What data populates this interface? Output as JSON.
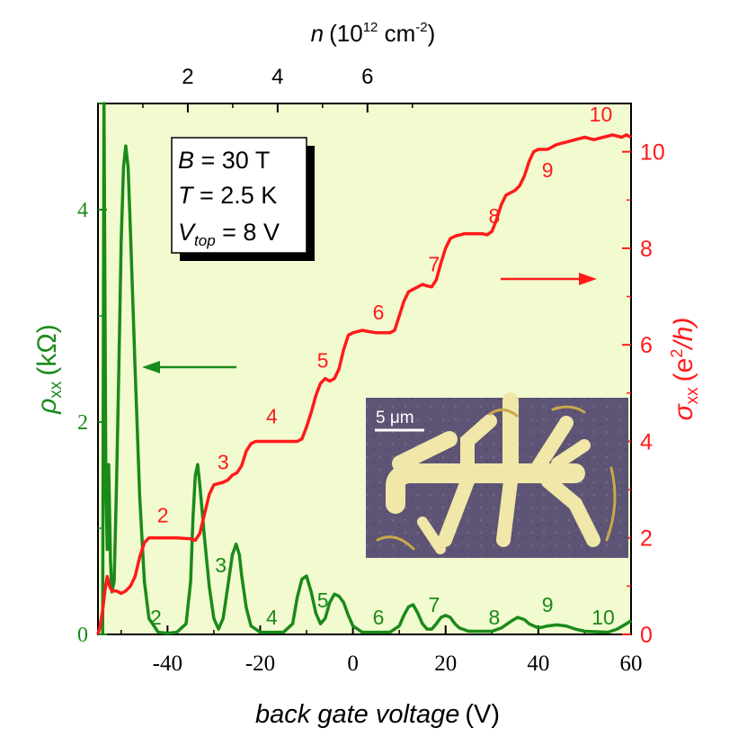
{
  "chart_data": {
    "type": "line",
    "xlabel_italic": "back gate voltage",
    "xlabel_unit": "(V)",
    "x_ticks": [
      -40,
      -20,
      0,
      20,
      40,
      60
    ],
    "xlim": [
      -55,
      60
    ],
    "top_axis": {
      "label_var": "n",
      "label_pre": "(10",
      "label_exp1": "12",
      "label_mid": " cm",
      "label_exp2": "-2",
      "label_post": ")",
      "ticks": [
        2,
        4,
        6
      ]
    },
    "left_axis": {
      "label_sym": "ρ",
      "label_sub": "xx",
      "label_unit": "(kΩ)",
      "ticks": [
        0,
        2,
        4
      ],
      "ylim": [
        0,
        5
      ],
      "color": "#1a8a1a"
    },
    "right_axis": {
      "label_sym": "σ",
      "label_sub": "xx",
      "label_unit_pre": "(e",
      "label_unit_exp": "2",
      "label_unit_post": "/h)",
      "ticks": [
        0,
        2,
        4,
        6,
        8,
        10
      ],
      "ylim": [
        0,
        11
      ],
      "color": "#ff1a1a"
    },
    "legend_box": {
      "line1_var": "B",
      "line1_val": " = 30 T",
      "line2_var": "T",
      "line2_val": " = 2.5 K",
      "line3_var": "V",
      "line3_sub": "top",
      "line3_val": " = 8 V"
    },
    "inset": {
      "scale_label": "5 μm"
    },
    "series": [
      {
        "axis": "left",
        "color": "#1a8a1a",
        "points": [
          [
            -54,
            0
          ],
          [
            -53.7,
            5.0
          ],
          [
            -53.3,
            1.4
          ],
          [
            -53,
            0.8
          ],
          [
            -52.7,
            1.6
          ],
          [
            -52.3,
            0.7
          ],
          [
            -52,
            0.4
          ],
          [
            -51.5,
            0.5
          ],
          [
            -51,
            1.4
          ],
          [
            -50.5,
            2.5
          ],
          [
            -50,
            3.7
          ],
          [
            -49.5,
            4.4
          ],
          [
            -49,
            4.6
          ],
          [
            -48.5,
            4.4
          ],
          [
            -48,
            3.8
          ],
          [
            -47,
            2.5
          ],
          [
            -46,
            1.3
          ],
          [
            -45,
            0.5
          ],
          [
            -44,
            0.15
          ],
          [
            -42,
            0.02
          ],
          [
            -40,
            0.01
          ],
          [
            -38,
            0.02
          ],
          [
            -36,
            0.1
          ],
          [
            -35,
            0.5
          ],
          [
            -34.5,
            1.1
          ],
          [
            -34,
            1.5
          ],
          [
            -33.5,
            1.6
          ],
          [
            -33,
            1.4
          ],
          [
            -32,
            0.9
          ],
          [
            -31,
            0.45
          ],
          [
            -30,
            0.15
          ],
          [
            -29,
            0.05
          ],
          [
            -28,
            0.15
          ],
          [
            -27,
            0.45
          ],
          [
            -26,
            0.75
          ],
          [
            -25.2,
            0.85
          ],
          [
            -24.5,
            0.75
          ],
          [
            -24,
            0.55
          ],
          [
            -23,
            0.25
          ],
          [
            -22,
            0.08
          ],
          [
            -20,
            0.02
          ],
          [
            -15,
            0.02
          ],
          [
            -13,
            0.1
          ],
          [
            -12,
            0.35
          ],
          [
            -11,
            0.52
          ],
          [
            -10,
            0.55
          ],
          [
            -9,
            0.4
          ],
          [
            -8,
            0.2
          ],
          [
            -7,
            0.1
          ],
          [
            -6,
            0.15
          ],
          [
            -5,
            0.3
          ],
          [
            -4,
            0.38
          ],
          [
            -3,
            0.36
          ],
          [
            -2,
            0.3
          ],
          [
            -1,
            0.18
          ],
          [
            0,
            0.08
          ],
          [
            2,
            0.02
          ],
          [
            8,
            0.02
          ],
          [
            10,
            0.08
          ],
          [
            11,
            0.18
          ],
          [
            12,
            0.26
          ],
          [
            13,
            0.28
          ],
          [
            14,
            0.2
          ],
          [
            15,
            0.1
          ],
          [
            16,
            0.05
          ],
          [
            17,
            0.05
          ],
          [
            18,
            0.1
          ],
          [
            19,
            0.16
          ],
          [
            20,
            0.18
          ],
          [
            21,
            0.16
          ],
          [
            22,
            0.1
          ],
          [
            23,
            0.06
          ],
          [
            25,
            0.03
          ],
          [
            30,
            0.03
          ],
          [
            32,
            0.06
          ],
          [
            34,
            0.12
          ],
          [
            35.5,
            0.16
          ],
          [
            37,
            0.14
          ],
          [
            38,
            0.1
          ],
          [
            40,
            0.06
          ],
          [
            42,
            0.08
          ],
          [
            44,
            0.09
          ],
          [
            46,
            0.08
          ],
          [
            48,
            0.05
          ],
          [
            50,
            0.03
          ],
          [
            55,
            0.02
          ],
          [
            57,
            0.05
          ],
          [
            59,
            0.1
          ],
          [
            60,
            0.13
          ]
        ]
      },
      {
        "axis": "right",
        "color": "#ff1a1a",
        "points": [
          [
            -55,
            0
          ],
          [
            -54.5,
            0.2
          ],
          [
            -54,
            0.5
          ],
          [
            -53.5,
            0.9
          ],
          [
            -53,
            1.2
          ],
          [
            -52.5,
            1.0
          ],
          [
            -52,
            0.9
          ],
          [
            -51,
            0.9
          ],
          [
            -50,
            0.85
          ],
          [
            -49,
            0.9
          ],
          [
            -48,
            1.0
          ],
          [
            -47,
            1.2
          ],
          [
            -46,
            1.6
          ],
          [
            -45,
            1.9
          ],
          [
            -44,
            2.0
          ],
          [
            -40,
            2.0
          ],
          [
            -38,
            2.0
          ],
          [
            -35,
            1.98
          ],
          [
            -34,
            1.95
          ],
          [
            -33,
            2.1
          ],
          [
            -32,
            2.5
          ],
          [
            -31,
            2.9
          ],
          [
            -30,
            3.1
          ],
          [
            -28,
            3.15
          ],
          [
            -27,
            3.2
          ],
          [
            -26,
            3.3
          ],
          [
            -25,
            3.35
          ],
          [
            -24,
            3.5
          ],
          [
            -23,
            3.8
          ],
          [
            -22,
            3.95
          ],
          [
            -21,
            4.0
          ],
          [
            -18,
            4.0
          ],
          [
            -15,
            4.0
          ],
          [
            -12,
            4.0
          ],
          [
            -11,
            4.05
          ],
          [
            -10,
            4.3
          ],
          [
            -9,
            4.6
          ],
          [
            -8,
            4.95
          ],
          [
            -7,
            5.2
          ],
          [
            -6,
            5.3
          ],
          [
            -5,
            5.25
          ],
          [
            -4,
            5.3
          ],
          [
            -3,
            5.5
          ],
          [
            -2,
            5.9
          ],
          [
            -1,
            6.2
          ],
          [
            0,
            6.25
          ],
          [
            2,
            6.3
          ],
          [
            5,
            6.25
          ],
          [
            8,
            6.25
          ],
          [
            9,
            6.3
          ],
          [
            10,
            6.6
          ],
          [
            11,
            6.9
          ],
          [
            12,
            7.1
          ],
          [
            14,
            7.2
          ],
          [
            15,
            7.25
          ],
          [
            16,
            7.22
          ],
          [
            17,
            7.2
          ],
          [
            18,
            7.35
          ],
          [
            19,
            7.7
          ],
          [
            20,
            8.0
          ],
          [
            21,
            8.2
          ],
          [
            22,
            8.25
          ],
          [
            24,
            8.3
          ],
          [
            26,
            8.3
          ],
          [
            28,
            8.3
          ],
          [
            29,
            8.28
          ],
          [
            30,
            8.35
          ],
          [
            31,
            8.6
          ],
          [
            32,
            8.9
          ],
          [
            33,
            9.1
          ],
          [
            35,
            9.2
          ],
          [
            36,
            9.3
          ],
          [
            37,
            9.5
          ],
          [
            38,
            9.8
          ],
          [
            39,
            10.0
          ],
          [
            40,
            10.05
          ],
          [
            42,
            10.05
          ],
          [
            44,
            10.15
          ],
          [
            46,
            10.2
          ],
          [
            48,
            10.25
          ],
          [
            50,
            10.3
          ],
          [
            52,
            10.25
          ],
          [
            54,
            10.3
          ],
          [
            56,
            10.35
          ],
          [
            58,
            10.3
          ],
          [
            59,
            10.35
          ],
          [
            60,
            10.3
          ]
        ]
      }
    ],
    "annotations_left": [
      {
        "text": "2",
        "x": -42.5,
        "y": 0.06
      },
      {
        "text": "3",
        "x": -28.5,
        "y": 0.55
      },
      {
        "text": "4",
        "x": -17.5,
        "y": 0.06
      },
      {
        "text": "5",
        "x": -6.5,
        "y": 0.22
      },
      {
        "text": "6",
        "x": 5.5,
        "y": 0.06
      },
      {
        "text": "7",
        "x": 17.5,
        "y": 0.18
      },
      {
        "text": "8",
        "x": 30.5,
        "y": 0.06
      },
      {
        "text": "9",
        "x": 42,
        "y": 0.18
      },
      {
        "text": "10",
        "x": 54,
        "y": 0.06
      }
    ],
    "annotations_right": [
      {
        "text": "2",
        "x": -41,
        "y": 2.25
      },
      {
        "text": "3",
        "x": -28,
        "y": 3.35
      },
      {
        "text": "4",
        "x": -17.5,
        "y": 4.3
      },
      {
        "text": "5",
        "x": -6.5,
        "y": 5.45
      },
      {
        "text": "6",
        "x": 5.5,
        "y": 6.45
      },
      {
        "text": "7",
        "x": 17.5,
        "y": 7.45
      },
      {
        "text": "8",
        "x": 30.5,
        "y": 8.45
      },
      {
        "text": "9",
        "x": 42,
        "y": 9.4
      },
      {
        "text": "10",
        "x": 53.5,
        "y": 10.55
      }
    ]
  }
}
